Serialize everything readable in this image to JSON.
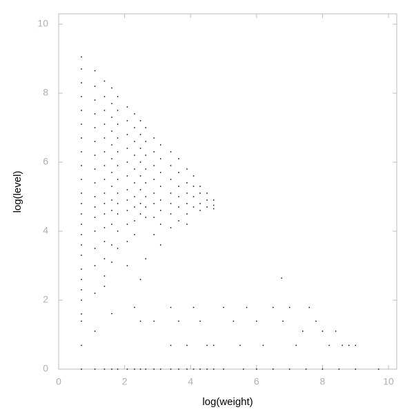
{
  "chart_data": {
    "type": "scatter",
    "x_label": "log(weight)",
    "y_label": "log(level)",
    "xlim": [
      0,
      10.25
    ],
    "ylim": [
      0,
      10.3
    ],
    "xticks": [
      0,
      2,
      4,
      6,
      8,
      10
    ],
    "yticks": [
      0,
      2,
      4,
      6,
      8,
      10
    ],
    "grid": false,
    "color": "#000000",
    "x": [
      0.69,
      0.69,
      0.69,
      0.69,
      0.69,
      0.69,
      0.69,
      0.69,
      0.69,
      0.69,
      0.69,
      0.69,
      0.69,
      0.69,
      0.69,
      0.69,
      0.69,
      0.69,
      0.69,
      0.69,
      0.69,
      0.69,
      0.69,
      0.69,
      0.69,
      1.1,
      1.1,
      1.1,
      1.1,
      1.1,
      1.1,
      1.1,
      1.1,
      1.1,
      1.1,
      1.1,
      1.1,
      1.1,
      1.1,
      1.1,
      1.1,
      1.1,
      1.1,
      1.39,
      1.39,
      1.39,
      1.39,
      1.39,
      1.39,
      1.39,
      1.39,
      1.39,
      1.39,
      1.39,
      1.39,
      1.39,
      1.39,
      1.39,
      1.39,
      1.39,
      1.61,
      1.61,
      1.61,
      1.61,
      1.61,
      1.61,
      1.61,
      1.61,
      1.61,
      1.61,
      1.61,
      1.61,
      1.61,
      1.61,
      1.61,
      1.79,
      1.79,
      1.79,
      1.79,
      1.79,
      1.79,
      1.79,
      1.79,
      1.79,
      1.79,
      1.79,
      1.79,
      1.79,
      2.08,
      2.08,
      2.08,
      2.08,
      2.08,
      2.08,
      2.08,
      2.08,
      2.08,
      2.08,
      2.08,
      2.08,
      2.08,
      2.3,
      2.3,
      2.3,
      2.3,
      2.3,
      2.3,
      2.3,
      2.3,
      2.3,
      2.3,
      2.3,
      2.3,
      2.48,
      2.48,
      2.48,
      2.48,
      2.48,
      2.48,
      2.48,
      2.48,
      2.48,
      2.48,
      2.48,
      2.64,
      2.64,
      2.64,
      2.64,
      2.64,
      2.64,
      2.64,
      2.64,
      2.64,
      2.64,
      2.89,
      2.89,
      2.89,
      2.89,
      2.89,
      2.89,
      2.89,
      2.89,
      2.89,
      2.89,
      3.09,
      3.09,
      3.09,
      3.09,
      3.09,
      3.09,
      3.09,
      3.09,
      3.09,
      3.4,
      3.4,
      3.4,
      3.4,
      3.4,
      3.4,
      3.4,
      3.4,
      3.4,
      3.4,
      3.64,
      3.64,
      3.64,
      3.64,
      3.64,
      3.64,
      3.64,
      3.64,
      3.89,
      3.89,
      3.89,
      3.89,
      3.89,
      3.89,
      3.89,
      3.89,
      4.09,
      4.09,
      4.09,
      4.09,
      4.09,
      4.09,
      4.29,
      4.29,
      4.29,
      4.29,
      4.29,
      4.29,
      4.5,
      4.5,
      4.5,
      4.5,
      4.5,
      4.7,
      4.7,
      4.7,
      4.7,
      4.7,
      5.0,
      5.3,
      5.5,
      5.7,
      6.0,
      6.2,
      6.5,
      6.76,
      6.8,
      7.0,
      7.2,
      7.4,
      7.6,
      7.8,
      8.0,
      8.2,
      8.4,
      8.6,
      8.8,
      9.0,
      5.0,
      5.6,
      6.0,
      6.5,
      7.0,
      7.5,
      8.0,
      8.5,
      9.0,
      9.7
    ],
    "values": [
      9.05,
      8.7,
      8.3,
      7.9,
      7.5,
      7.1,
      6.7,
      6.3,
      5.9,
      5.5,
      5.1,
      4.8,
      4.5,
      4.2,
      3.9,
      3.6,
      3.3,
      2.9,
      2.6,
      2.3,
      2.0,
      1.6,
      1.39,
      0.69,
      0,
      8.65,
      8.2,
      7.8,
      7.4,
      7.0,
      6.6,
      6.2,
      5.8,
      5.4,
      5.0,
      4.7,
      4.4,
      4.0,
      3.5,
      3.0,
      2.2,
      1.1,
      0,
      8.35,
      7.9,
      7.5,
      7.1,
      6.7,
      6.3,
      5.9,
      5.5,
      5.1,
      4.8,
      4.5,
      4.1,
      3.7,
      3.2,
      2.7,
      2.4,
      0,
      8.15,
      7.7,
      7.3,
      6.9,
      6.5,
      6.1,
      5.7,
      5.3,
      4.9,
      4.6,
      4.2,
      3.6,
      3.1,
      1.61,
      0,
      7.9,
      7.5,
      7.1,
      6.7,
      6.3,
      5.9,
      5.5,
      5.1,
      4.8,
      4.5,
      4.0,
      3.5,
      0,
      7.6,
      7.2,
      6.8,
      6.4,
      6.0,
      5.6,
      5.2,
      4.9,
      4.6,
      4.2,
      3.7,
      3.0,
      0,
      7.4,
      7.0,
      6.6,
      6.2,
      5.8,
      5.4,
      5.0,
      4.7,
      4.3,
      3.9,
      1.79,
      0,
      7.2,
      6.8,
      6.4,
      6.0,
      5.6,
      5.2,
      4.8,
      4.5,
      2.6,
      1.39,
      0,
      7.0,
      6.6,
      6.2,
      5.8,
      5.4,
      5.0,
      4.7,
      4.4,
      3.2,
      0,
      6.7,
      6.3,
      5.9,
      5.5,
      5.1,
      4.8,
      4.4,
      3.9,
      1.39,
      0,
      6.5,
      6.1,
      5.7,
      5.3,
      4.9,
      4.6,
      4.2,
      3.6,
      0,
      6.3,
      5.9,
      5.5,
      5.1,
      4.8,
      4.5,
      4.1,
      1.79,
      0.69,
      0,
      6.1,
      5.7,
      5.3,
      5.0,
      4.7,
      4.3,
      1.39,
      0,
      5.8,
      5.4,
      5.1,
      4.8,
      4.5,
      4.2,
      0.69,
      0,
      5.6,
      5.3,
      5.0,
      4.7,
      1.79,
      0,
      5.3,
      5.1,
      4.8,
      4.6,
      1.39,
      0,
      5.1,
      4.9,
      4.7,
      0.69,
      0,
      4.9,
      4.75,
      4.65,
      0.69,
      0,
      1.79,
      1.39,
      0.69,
      1.79,
      1.39,
      0.69,
      1.79,
      2.64,
      1.39,
      1.79,
      0.69,
      1.1,
      1.79,
      1.39,
      1.1,
      0.69,
      1.1,
      0.69,
      0.69,
      0.69,
      0,
      0,
      0,
      0,
      0,
      0,
      0,
      0,
      0,
      0
    ]
  }
}
